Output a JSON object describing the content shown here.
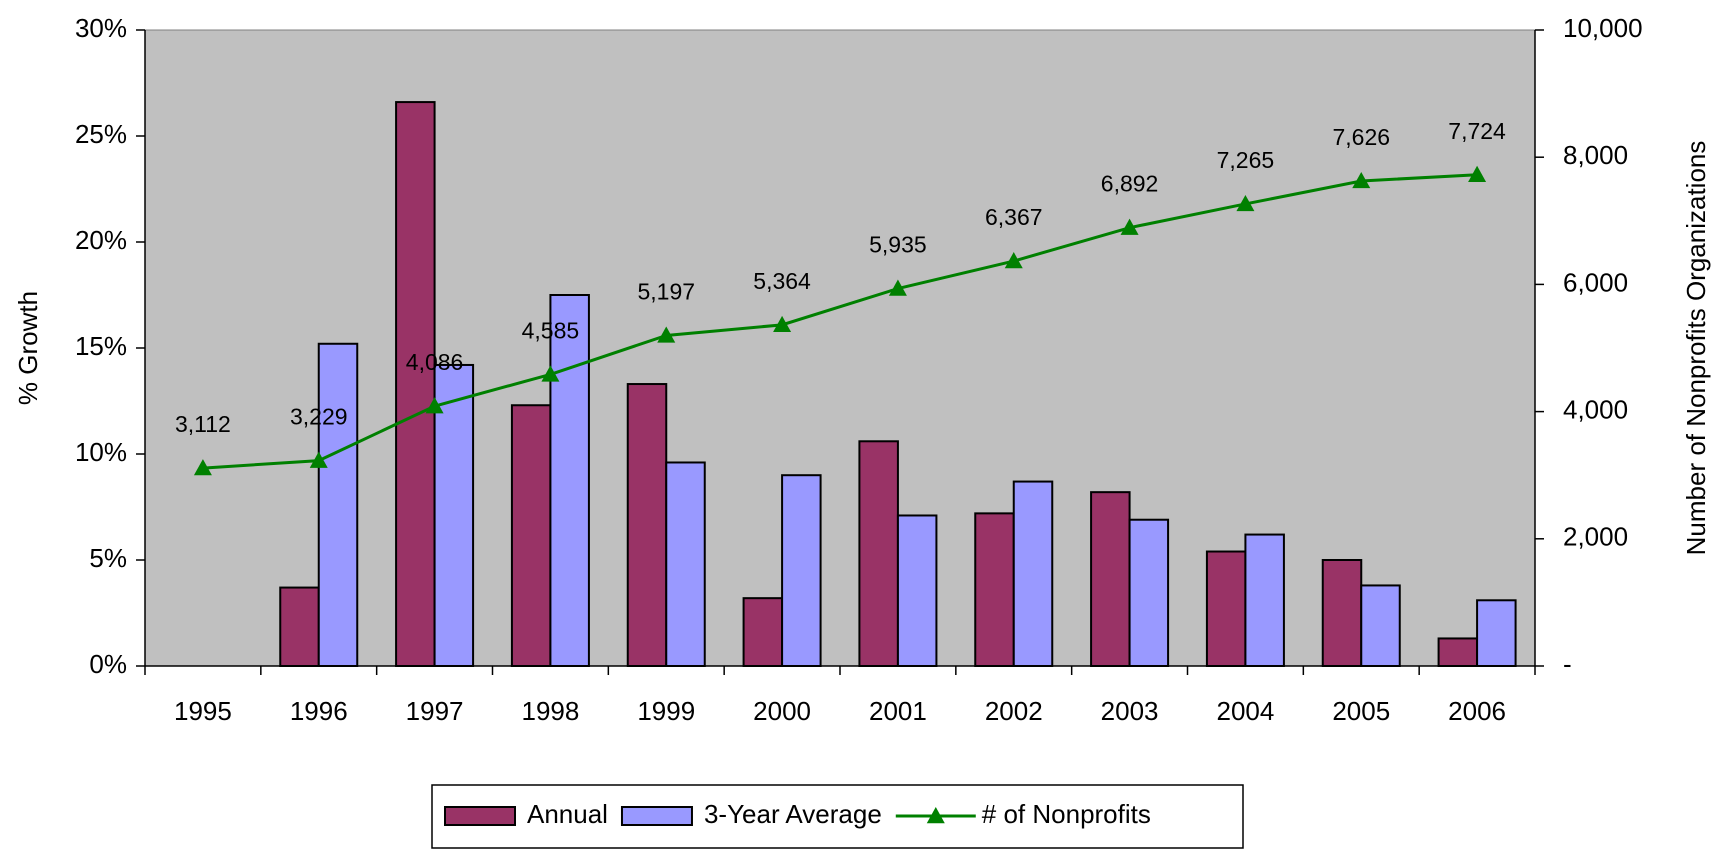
{
  "chart_data": {
    "type": "bar",
    "y_label": "% Growth",
    "y2_label": "Number of Nonprofits Organizations",
    "categories": [
      "1995",
      "1996",
      "1997",
      "1998",
      "1999",
      "2000",
      "2001",
      "2002",
      "2003",
      "2004",
      "2005",
      "2006"
    ],
    "series": [
      {
        "name": "Annual",
        "color": "#993366",
        "values": [
          null,
          3.7,
          26.6,
          12.3,
          13.3,
          3.2,
          10.6,
          7.2,
          8.2,
          5.4,
          5.0,
          1.3
        ]
      },
      {
        "name": "3-Year Average",
        "color": "#9999ff",
        "values": [
          null,
          15.2,
          14.2,
          17.5,
          9.6,
          9.0,
          7.1,
          8.7,
          6.9,
          6.2,
          3.8,
          3.1
        ]
      },
      {
        "name": "# of Nonprofits",
        "color": "#008000",
        "type": "line",
        "axis": "y2",
        "values": [
          3112,
          3229,
          4086,
          4585,
          5197,
          5364,
          5935,
          6367,
          6892,
          7265,
          7626,
          7724
        ],
        "value_labels": [
          "3,112",
          "3,229",
          "4,086",
          "4,585",
          "5,197",
          "5,364",
          "5,935",
          "6,367",
          "6,892",
          "7,265",
          "7,626",
          "7,724"
        ]
      }
    ],
    "ylim": [
      0,
      30
    ],
    "yticks": [
      {
        "value": 0,
        "label": "0%"
      },
      {
        "value": 5,
        "label": "5%"
      },
      {
        "value": 10,
        "label": "10%"
      },
      {
        "value": 15,
        "label": "15%"
      },
      {
        "value": 20,
        "label": "20%"
      },
      {
        "value": 25,
        "label": "25%"
      },
      {
        "value": 30,
        "label": "30%"
      }
    ],
    "y2lim": [
      0,
      10000
    ],
    "y2ticks": [
      {
        "value": 0,
        "label": "-"
      },
      {
        "value": 2000,
        "label": "2,000"
      },
      {
        "value": 4000,
        "label": "4,000"
      },
      {
        "value": 6000,
        "label": "6,000"
      },
      {
        "value": 8000,
        "label": "8,000"
      },
      {
        "value": 10000,
        "label": "10,000"
      }
    ],
    "plot_background": "#c0c0c0",
    "legend": "bottom"
  }
}
